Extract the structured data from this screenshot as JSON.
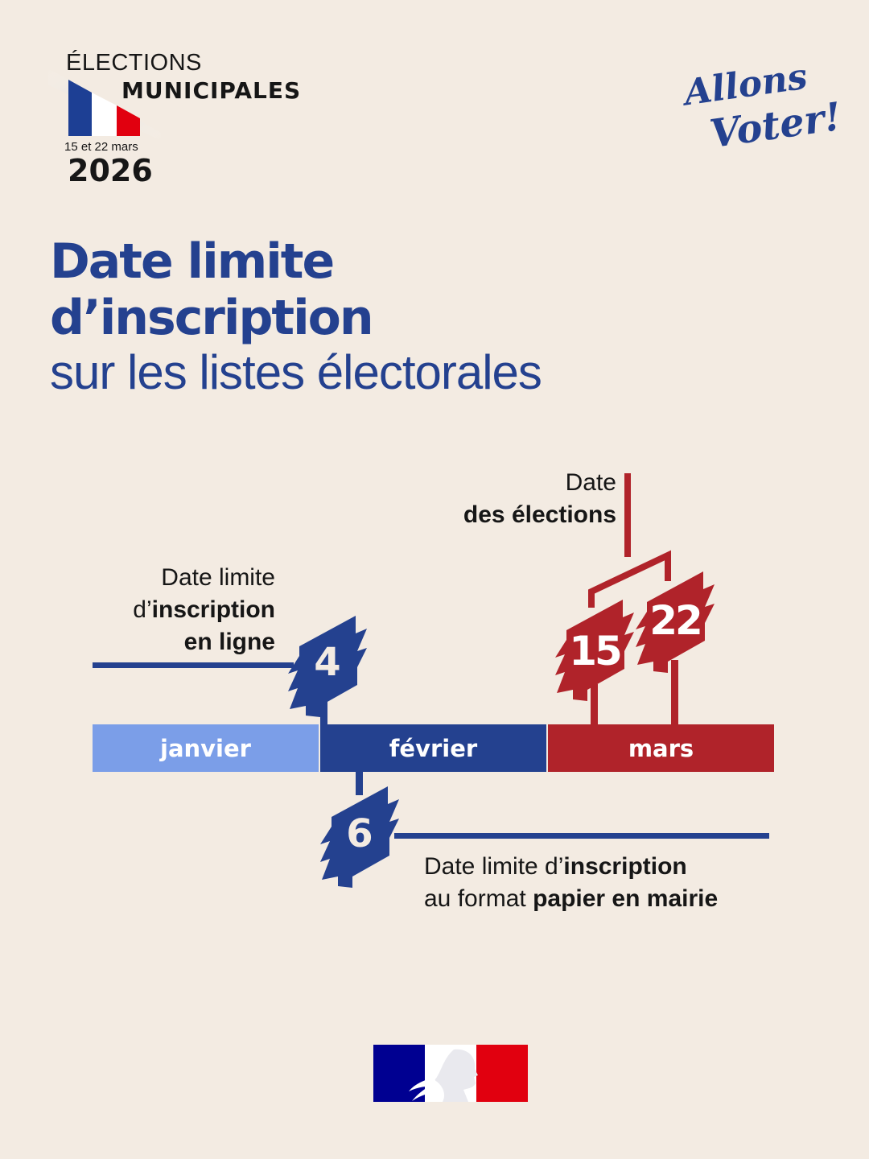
{
  "header": {
    "election_word": "ÉLECTIONS",
    "election_type": "MUNICIPALES",
    "dates": "15 et 22 mars",
    "year": "2026",
    "slogan_line1": "Allons",
    "slogan_line2": "Voter!"
  },
  "title": {
    "line1": "Date limite",
    "line2": "d’inscription",
    "line3": "sur les listes électorales"
  },
  "timeline": {
    "months": [
      {
        "label": "janvier",
        "color": "#7b9ee8"
      },
      {
        "label": "février",
        "color": "#24418f"
      },
      {
        "label": "mars",
        "color": "#b0232a"
      }
    ],
    "online": {
      "day": "4",
      "l1": "Date limite",
      "l2a": "d’",
      "l2b": "inscription",
      "l3": "en ligne"
    },
    "paper": {
      "day": "6",
      "l1a": "Date limite d’",
      "l1b": "inscription",
      "l2a": "au format ",
      "l2b": "papier en mairie"
    },
    "elections": {
      "days": [
        "15",
        "22"
      ],
      "l1": "Date",
      "l2": "des élections"
    }
  },
  "colors": {
    "background": "#f3ebe2",
    "blue": "#24418f",
    "red": "#b0232a",
    "light_blue": "#7b9ee8"
  },
  "footer": {
    "logo": "Marianne - République Française"
  }
}
